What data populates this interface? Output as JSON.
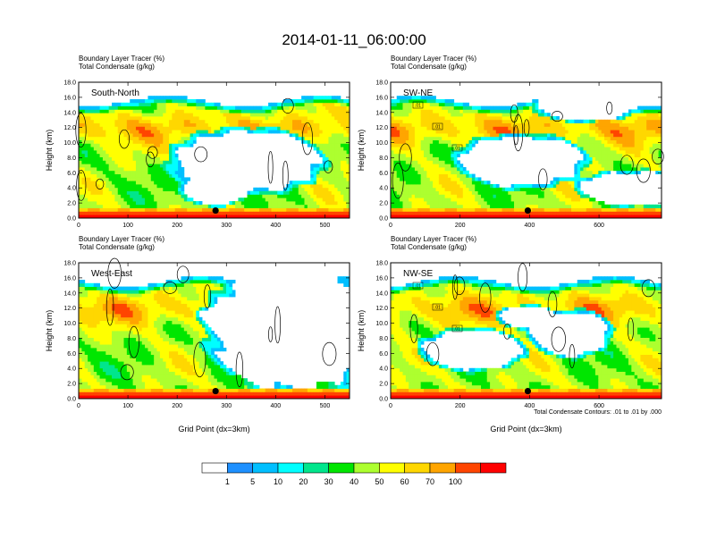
{
  "figure": {
    "title": "2014-01-11_06:00:00",
    "footnote": "Total Condensate Contours: .01 to .01 by .000"
  },
  "colorbar": {
    "tick_labels": [
      "1",
      "5",
      "10",
      "20",
      "30",
      "40",
      "50",
      "60",
      "70",
      "100"
    ],
    "colors": [
      "#ffffff",
      "#1e90ff",
      "#00bfff",
      "#00ffff",
      "#00e68c",
      "#00e600",
      "#adff2f",
      "#ffff00",
      "#ffd700",
      "#ffa500",
      "#ff4500",
      "#ff0000"
    ]
  },
  "chart_data": [
    {
      "type": "heatmap",
      "panel": "top-left",
      "subtitle_lines": [
        "Boundary Layer Tracer   (%)",
        "Total Condensate   (g/kg)"
      ],
      "label": "South-North",
      "xlabel": "",
      "ylabel": "Height (km)",
      "xlim": [
        0,
        550
      ],
      "ylim": [
        0,
        18
      ],
      "x_ticks": [
        "0",
        "100",
        "200",
        "300",
        "400",
        "500"
      ],
      "x_tick_values": [
        0,
        100,
        200,
        300,
        400,
        500
      ],
      "y_ticks": [
        "0.0",
        "2.0",
        "4.0",
        "6.0",
        "8.0",
        "10.0",
        "12.0",
        "14.0",
        "16.0",
        "18.0"
      ],
      "y_tick_values": [
        0,
        2,
        4,
        6,
        8,
        10,
        12,
        14,
        16,
        18
      ],
      "marker": {
        "x": 278,
        "y": 1.0
      },
      "contour_labels": []
    },
    {
      "type": "heatmap",
      "panel": "top-right",
      "subtitle_lines": [
        "Boundary Layer Tracer   (%)",
        "Total Condensate   (g/kg)"
      ],
      "label": "SW-NE",
      "xlabel": "",
      "ylabel": "Height (km)",
      "xlim": [
        0,
        780
      ],
      "ylim": [
        0,
        18
      ],
      "x_ticks": [
        "0",
        "200",
        "400",
        "600"
      ],
      "x_tick_values": [
        0,
        200,
        400,
        600
      ],
      "y_ticks": [
        "0.0",
        "2.0",
        "4.0",
        "6.0",
        "8.0",
        "10.0",
        "12.0",
        "14.0",
        "16.0",
        "18.0"
      ],
      "y_tick_values": [
        0,
        2,
        4,
        6,
        8,
        10,
        12,
        14,
        16,
        18
      ],
      "marker": {
        "x": 395,
        "y": 1.0
      },
      "contour_labels": [
        ".01",
        ".01",
        ".01"
      ]
    },
    {
      "type": "heatmap",
      "panel": "bottom-left",
      "subtitle_lines": [
        "Boundary Layer Tracer   (%)",
        "Total Condensate   (g/kg)"
      ],
      "label": "West-East",
      "xlabel": "Grid Point (dx=3km)",
      "ylabel": "Height (km)",
      "xlim": [
        0,
        550
      ],
      "ylim": [
        0,
        18
      ],
      "x_ticks": [
        "0",
        "100",
        "200",
        "300",
        "400",
        "500"
      ],
      "x_tick_values": [
        0,
        100,
        200,
        300,
        400,
        500
      ],
      "y_ticks": [
        "0.0",
        "2.0",
        "4.0",
        "6.0",
        "8.0",
        "10.0",
        "12.0",
        "14.0",
        "16.0",
        "18.0"
      ],
      "y_tick_values": [
        0,
        2,
        4,
        6,
        8,
        10,
        12,
        14,
        16,
        18
      ],
      "marker": {
        "x": 278,
        "y": 1.0
      },
      "contour_labels": []
    },
    {
      "type": "heatmap",
      "panel": "bottom-right",
      "subtitle_lines": [
        "Boundary Layer Tracer   (%)",
        "Total Condensate   (g/kg)"
      ],
      "label": "NW-SE",
      "xlabel": "Grid Point (dx=3km)",
      "ylabel": "Height (km)",
      "xlim": [
        0,
        780
      ],
      "ylim": [
        0,
        18
      ],
      "x_ticks": [
        "0",
        "200",
        "400",
        "600"
      ],
      "x_tick_values": [
        0,
        200,
        400,
        600
      ],
      "y_ticks": [
        "0.0",
        "2.0",
        "4.0",
        "6.0",
        "8.0",
        "10.0",
        "12.0",
        "14.0",
        "16.0",
        "18.0"
      ],
      "y_tick_values": [
        0,
        2,
        4,
        6,
        8,
        10,
        12,
        14,
        16,
        18
      ],
      "marker": {
        "x": 395,
        "y": 1.0
      },
      "contour_labels": [
        ".01",
        ".01",
        ".01"
      ]
    }
  ]
}
